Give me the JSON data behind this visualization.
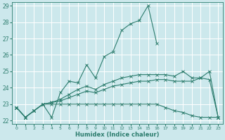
{
  "xlabel": "Humidex (Indice chaleur)",
  "bg_color": "#cce8ec",
  "grid_color": "#ffffff",
  "line_color": "#2d7d6e",
  "xlim": [
    -0.5,
    23.5
  ],
  "ylim": [
    21.8,
    29.2
  ],
  "yticks": [
    22,
    23,
    24,
    25,
    26,
    27,
    28,
    29
  ],
  "xticks": [
    0,
    1,
    2,
    3,
    4,
    5,
    6,
    7,
    8,
    9,
    10,
    11,
    12,
    13,
    14,
    15,
    16,
    17,
    18,
    19,
    20,
    21,
    22,
    23
  ],
  "s1_x": [
    0,
    1,
    2,
    3,
    4,
    5,
    6,
    7,
    8,
    9,
    10,
    11,
    12,
    13,
    14,
    15,
    16
  ],
  "s1_y": [
    22.8,
    22.2,
    22.6,
    23.0,
    22.2,
    23.7,
    24.4,
    24.3,
    25.4,
    24.6,
    25.9,
    26.2,
    27.5,
    27.9,
    28.1,
    29.0,
    26.7
  ],
  "s2_x": [
    0,
    1,
    2,
    3,
    4,
    5,
    6,
    7,
    8,
    9,
    10,
    11,
    12,
    13,
    14,
    15,
    16,
    17,
    18,
    19,
    20,
    21,
    22,
    23
  ],
  "s2_y": [
    22.8,
    22.2,
    22.6,
    23.0,
    23.0,
    23.0,
    23.0,
    23.0,
    23.0,
    23.0,
    23.0,
    23.0,
    23.0,
    23.0,
    23.0,
    23.0,
    23.0,
    22.8,
    22.6,
    22.5,
    22.3,
    22.2,
    22.2,
    22.2
  ],
  "s3_x": [
    0,
    1,
    2,
    3,
    4,
    5,
    6,
    7,
    8,
    9,
    10,
    11,
    12,
    13,
    14,
    15,
    16,
    17,
    18,
    19,
    20,
    21,
    22,
    23
  ],
  "s3_y": [
    22.8,
    22.2,
    22.6,
    23.0,
    23.1,
    23.2,
    23.4,
    23.6,
    23.8,
    23.7,
    23.9,
    24.1,
    24.2,
    24.3,
    24.4,
    24.4,
    24.5,
    24.5,
    24.4,
    24.4,
    24.4,
    24.6,
    24.5,
    22.2
  ],
  "s4_x": [
    0,
    1,
    2,
    3,
    4,
    5,
    6,
    7,
    8,
    9,
    10,
    11,
    12,
    13,
    14,
    15,
    16,
    17,
    18,
    19,
    20,
    21,
    22,
    23
  ],
  "s4_y": [
    22.8,
    22.2,
    22.6,
    23.0,
    23.1,
    23.3,
    23.6,
    23.9,
    24.1,
    23.9,
    24.2,
    24.4,
    24.6,
    24.7,
    24.8,
    24.8,
    24.8,
    24.8,
    24.7,
    25.0,
    24.6,
    24.6,
    25.0,
    22.2
  ]
}
